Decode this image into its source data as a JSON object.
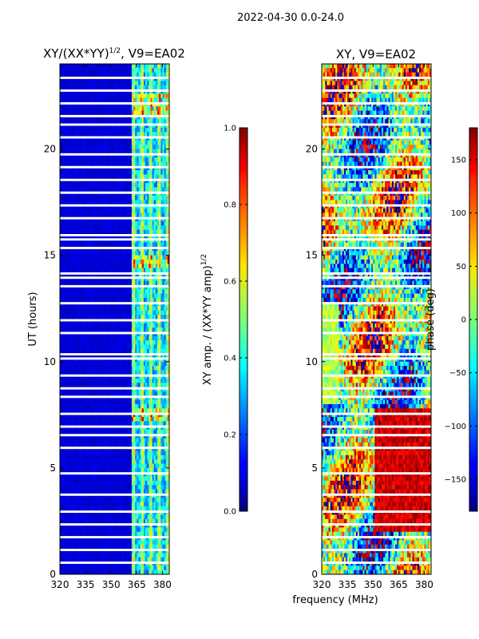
{
  "suptitle": "2022-04-30 0.0-24.0",
  "xlabel_shared": "frequency (MHz)",
  "chart_data": [
    {
      "type": "heatmap",
      "title_main": "XY/(XX*YY)",
      "title_sup": "1/2",
      "title_tail": ", V9=EA02",
      "xlabel": "",
      "ylabel": "UT (hours)",
      "xlim": [
        320,
        384
      ],
      "ylim": [
        0,
        24
      ],
      "xticks": [
        320,
        335,
        350,
        365,
        380
      ],
      "yticks": [
        0,
        5,
        10,
        15,
        20
      ],
      "colorbar": {
        "label_main": "XY amp. / (XX*YY amp)",
        "label_sup": "1/2",
        "range": [
          0.0,
          1.0
        ],
        "ticks": [
          0.0,
          0.2,
          0.4,
          0.6,
          0.8,
          1.0
        ],
        "tick_labels": [
          "0.0",
          "0.2",
          "0.4",
          "0.6",
          "0.8",
          "1.0"
        ]
      }
    },
    {
      "type": "heatmap",
      "title_main": "XY, V9=EA02",
      "title_sup": "",
      "title_tail": "",
      "xlabel": "frequency (MHz)",
      "ylabel": "",
      "xlim": [
        320,
        384
      ],
      "ylim": [
        0,
        24
      ],
      "xticks": [
        320,
        335,
        350,
        365,
        380
      ],
      "yticks": [
        0,
        5,
        10,
        15,
        20
      ],
      "colorbar": {
        "label_main": "phase (deg)",
        "label_sup": "",
        "range": [
          -180,
          180
        ],
        "ticks": [
          -150,
          -100,
          -50,
          0,
          50,
          100,
          150
        ],
        "tick_labels": [
          "−150",
          "−100",
          "−50",
          "0",
          "50",
          "100",
          "150"
        ]
      }
    }
  ]
}
